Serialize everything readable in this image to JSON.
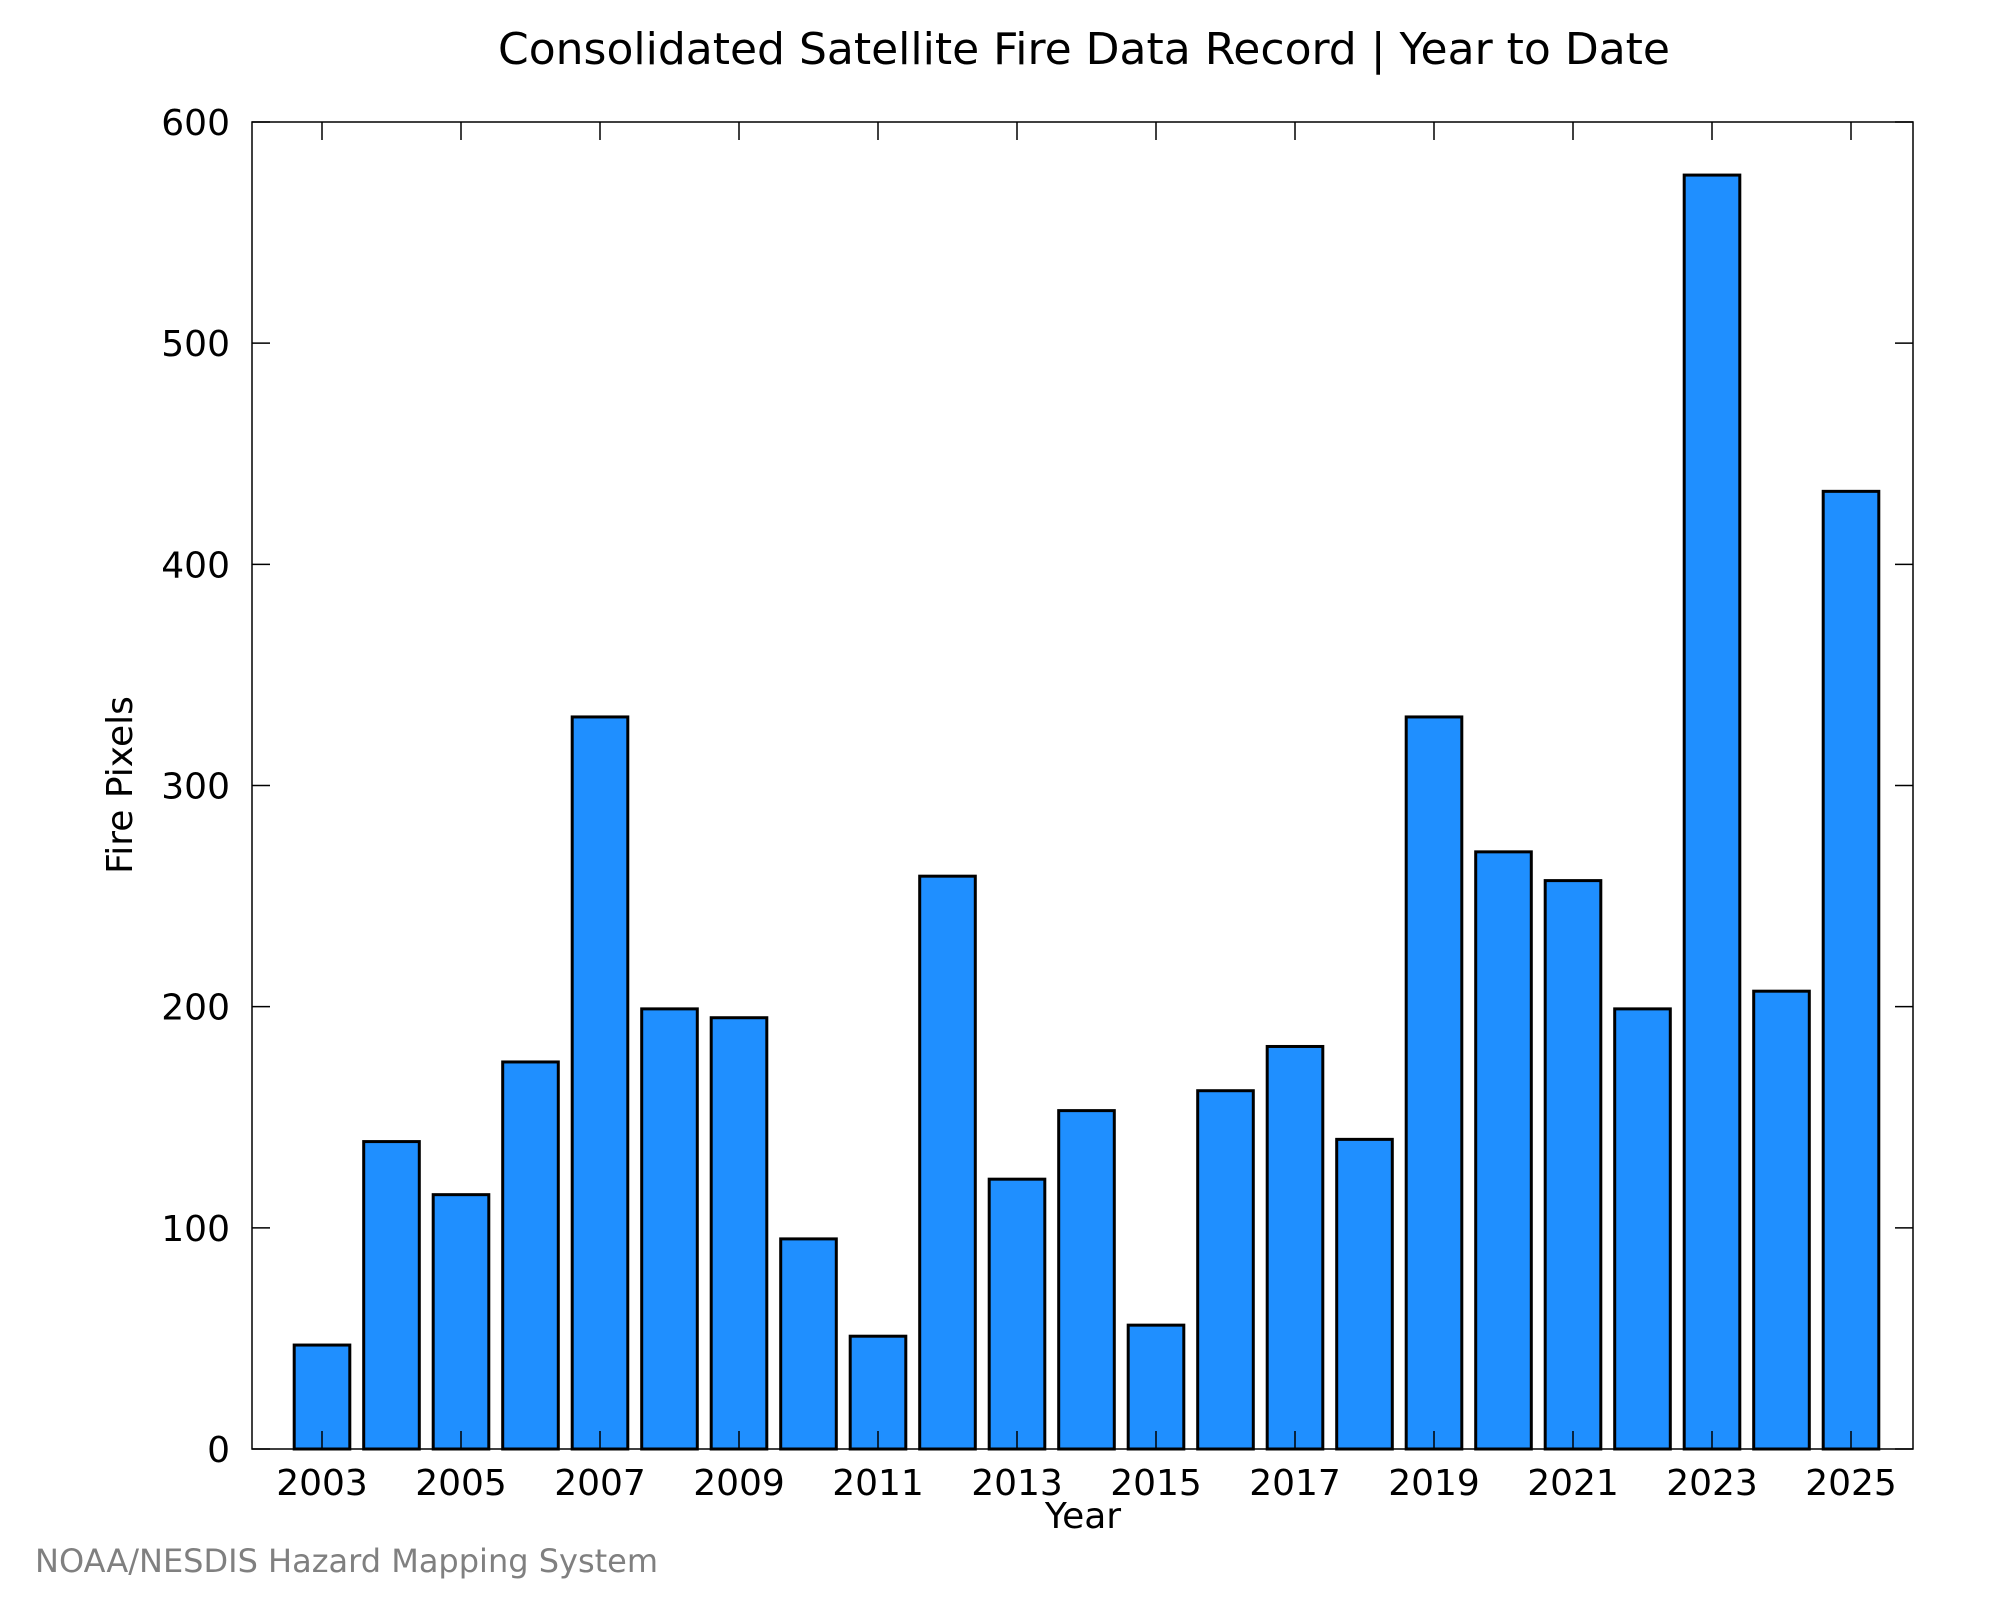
{
  "chart_data": {
    "type": "bar",
    "title": "Consolidated Satellite Fire Data Record | Year to Date",
    "xlabel": "Year",
    "ylabel": "Fire Pixels",
    "ylim": [
      0,
      600
    ],
    "yticks": [
      0,
      100,
      200,
      300,
      400,
      500,
      600
    ],
    "categories": [
      2003,
      2004,
      2005,
      2006,
      2007,
      2008,
      2009,
      2010,
      2011,
      2012,
      2013,
      2014,
      2015,
      2016,
      2017,
      2018,
      2019,
      2020,
      2021,
      2022,
      2023,
      2024,
      2025
    ],
    "xtick_labels": [
      "2003",
      "2005",
      "2007",
      "2009",
      "2011",
      "2013",
      "2015",
      "2017",
      "2019",
      "2021",
      "2023",
      "2025"
    ],
    "values": [
      47,
      139,
      115,
      175,
      331,
      199,
      195,
      95,
      51,
      259,
      122,
      153,
      56,
      162,
      182,
      140,
      331,
      270,
      257,
      199,
      576,
      207,
      433
    ],
    "grid": false,
    "legend": "none",
    "bar_color": "#1f8fff",
    "edge_color": "#000000"
  },
  "credit": "NOAA/NESDIS Hazard Mapping System"
}
